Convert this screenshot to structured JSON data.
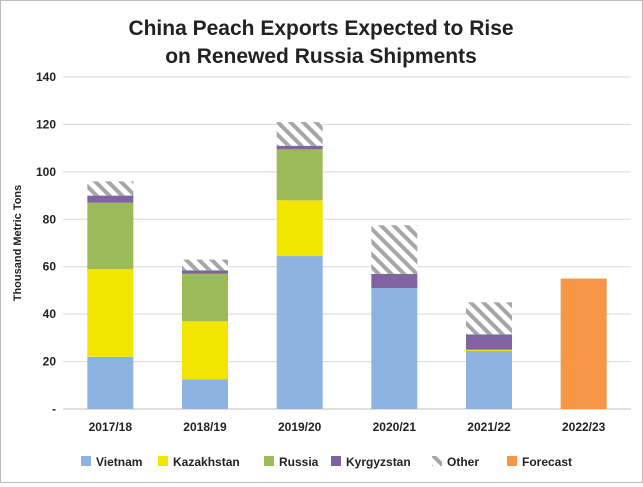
{
  "chart_data": {
    "type": "bar",
    "stacked": true,
    "title_lines": [
      "China Peach Exports Expected to Rise",
      "on Renewed Russia Shipments"
    ],
    "xlabel": "",
    "ylabel": "Thousand Metric Tons",
    "ylim": [
      0,
      140
    ],
    "yticks": [
      0,
      20,
      40,
      60,
      80,
      100,
      120,
      140
    ],
    "ytick_labels": [
      "-",
      "20",
      "40",
      "60",
      "80",
      "100",
      "120",
      "140"
    ],
    "grid": true,
    "legend_position": "bottom",
    "categories": [
      "2017/18",
      "2018/19",
      "2019/20",
      "2020/21",
      "2021/22",
      "2022/23"
    ],
    "series": [
      {
        "name": "Vietnam",
        "color": "#8DB3E2",
        "pattern": "solid",
        "values": [
          22,
          12.5,
          64.5,
          51,
          24.5,
          0
        ]
      },
      {
        "name": "Kazakhstan",
        "color": "#F2E600",
        "pattern": "solid",
        "values": [
          37,
          24.5,
          23.5,
          0,
          0.5,
          0
        ]
      },
      {
        "name": "Russia",
        "color": "#9BBB59",
        "pattern": "solid",
        "values": [
          28,
          20,
          21.5,
          0,
          0,
          0
        ]
      },
      {
        "name": "Kyrgyzstan",
        "color": "#8064A2",
        "pattern": "solid",
        "values": [
          3,
          1.5,
          1.5,
          6,
          6.5,
          0
        ]
      },
      {
        "name": "Other",
        "color": "#A6A6A6",
        "pattern": "hatch",
        "values": [
          6,
          4.5,
          10,
          20.5,
          13.5,
          0
        ]
      },
      {
        "name": "Forecast",
        "color": "#F79646",
        "pattern": "solid",
        "values": [
          0,
          0,
          0,
          0,
          0,
          55
        ]
      }
    ]
  }
}
